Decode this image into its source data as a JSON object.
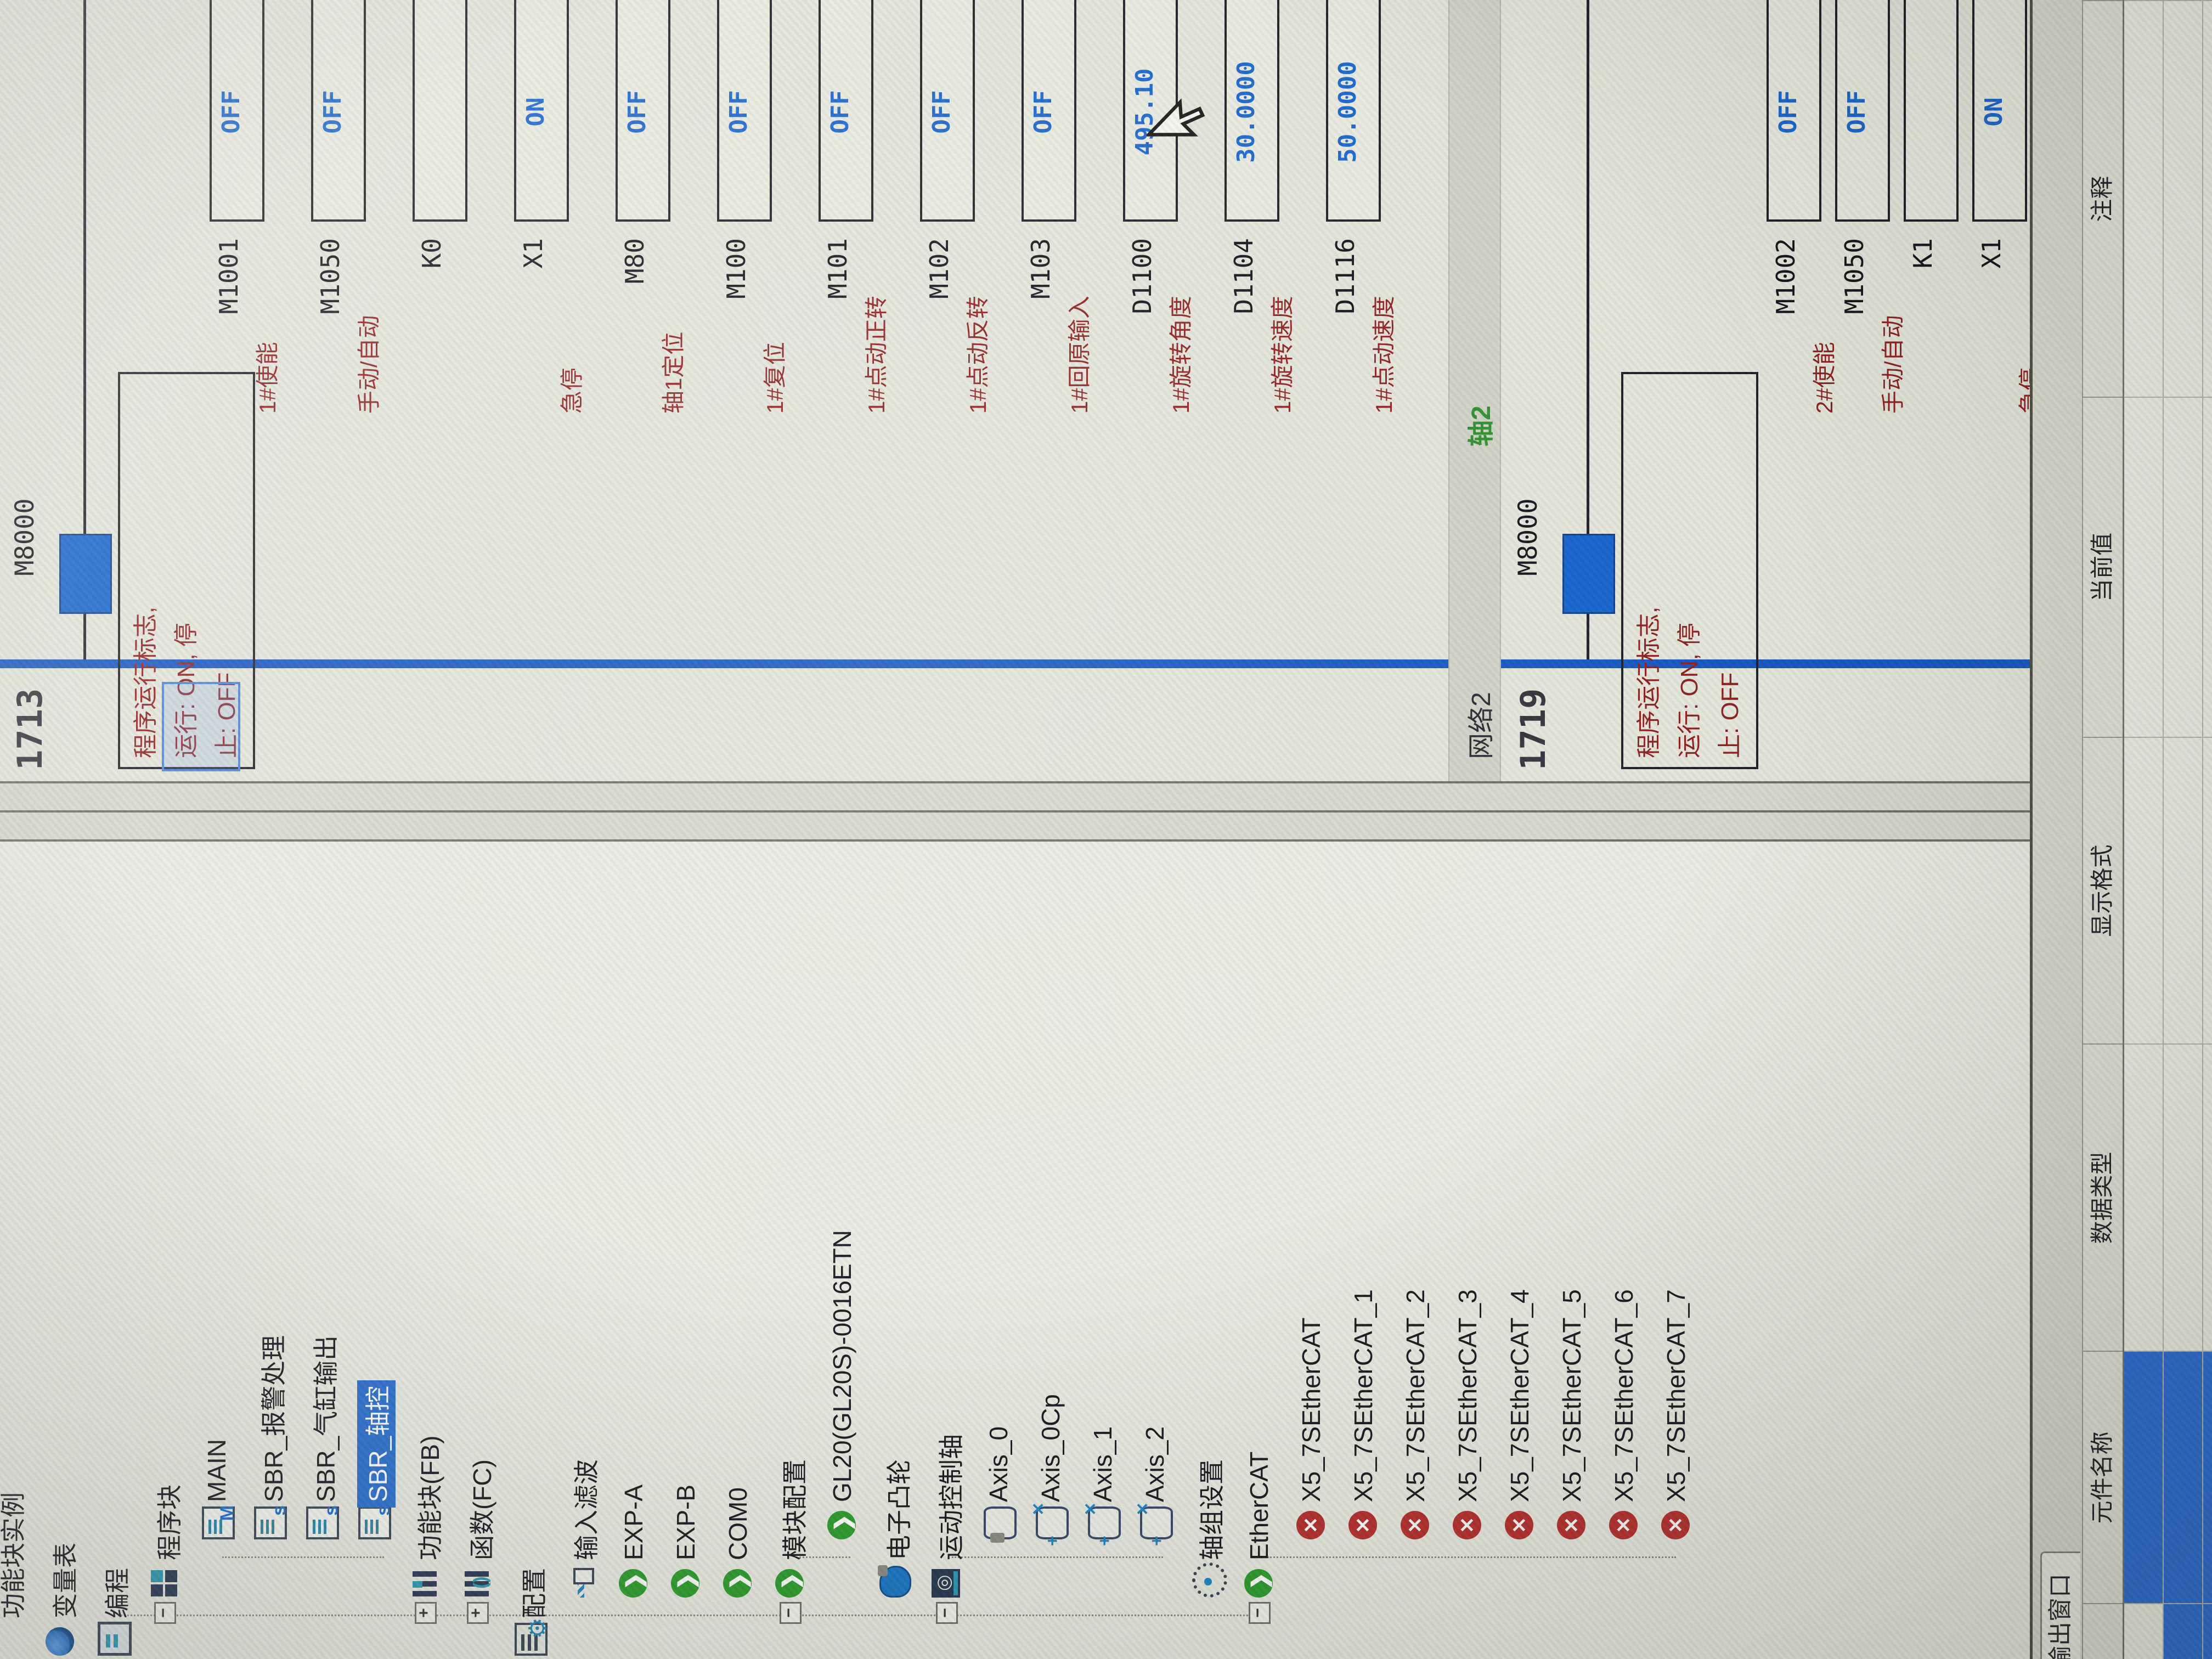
{
  "colors": {
    "selection_blue": "#2b6fd0",
    "rail_blue": "#1757c2",
    "contact_blue": "#1563cc",
    "value_blue": "#1b66cc",
    "comment_red": "#8e2020",
    "network_title_green": "#2f8f2f",
    "error_red": "#b83232",
    "ok_green": "#2f9e2f"
  },
  "tree": {
    "items": [
      {
        "label": "功能块实例",
        "icon": null,
        "level": 0,
        "expander": null,
        "selected": false
      },
      {
        "label": "变量表",
        "icon": "globe",
        "level": 0,
        "expander": null,
        "selected": false
      },
      {
        "label": "编程",
        "icon": "cube",
        "level": 0,
        "expander": "open",
        "selected": false
      },
      {
        "label": "程序块",
        "icon": "blocks",
        "level": 1,
        "expander": "open",
        "selected": false
      },
      {
        "label": "MAIN",
        "icon": "doc-m",
        "level": 2,
        "expander": null,
        "selected": false
      },
      {
        "label": "SBR_报警处理",
        "icon": "doc-s",
        "level": 2,
        "expander": null,
        "selected": false
      },
      {
        "label": "SBR_气缸输出",
        "icon": "doc-s",
        "level": 2,
        "expander": null,
        "selected": false
      },
      {
        "label": "SBR_轴控",
        "icon": "doc-s",
        "level": 2,
        "expander": null,
        "selected": true
      },
      {
        "label": "功能块(FB)",
        "icon": "fb",
        "level": 1,
        "expander": "closed",
        "selected": false
      },
      {
        "label": "函数(FC)",
        "icon": "fc",
        "level": 1,
        "expander": "closed",
        "selected": false
      },
      {
        "label": "配置",
        "icon": "config",
        "level": 0,
        "expander": "open",
        "selected": false
      },
      {
        "label": "输入滤波",
        "icon": "wave",
        "level": 1,
        "expander": null,
        "selected": false
      },
      {
        "label": "EXP-A",
        "icon": "green",
        "level": 1,
        "expander": null,
        "selected": false
      },
      {
        "label": "EXP-B",
        "icon": "green",
        "level": 1,
        "expander": null,
        "selected": false
      },
      {
        "label": "COM0",
        "icon": "green",
        "level": 1,
        "expander": null,
        "selected": false
      },
      {
        "label": "模块配置",
        "icon": "green",
        "level": 1,
        "expander": "open",
        "selected": false
      },
      {
        "label": "GL20(GL20S)-0016ETN",
        "icon": "green",
        "level": 2,
        "expander": null,
        "selected": false
      },
      {
        "label": "电子凸轮",
        "icon": "cam",
        "level": 1,
        "expander": null,
        "selected": false
      },
      {
        "label": "运动控制轴",
        "icon": "motion",
        "level": 1,
        "expander": "open",
        "selected": false
      },
      {
        "label": "Axis_0",
        "icon": "axis-motor",
        "level": 2,
        "expander": null,
        "selected": false
      },
      {
        "label": "Axis_0Cp",
        "icon": "axis-x",
        "level": 2,
        "expander": null,
        "selected": false
      },
      {
        "label": "Axis_1",
        "icon": "axis-x",
        "level": 2,
        "expander": null,
        "selected": false
      },
      {
        "label": "Axis_2",
        "icon": "axis-x",
        "level": 2,
        "expander": null,
        "selected": false
      },
      {
        "label": "轴组设置",
        "icon": "gear",
        "level": 1,
        "expander": null,
        "selected": false
      },
      {
        "label": "EtherCAT",
        "icon": "green",
        "level": 1,
        "expander": "open",
        "selected": false
      },
      {
        "label": "X5_7SEtherCAT",
        "icon": "red-x",
        "level": 2,
        "expander": null,
        "selected": false
      },
      {
        "label": "X5_7SEtherCAT_1",
        "icon": "red-x",
        "level": 2,
        "expander": null,
        "selected": false
      },
      {
        "label": "X5_7SEtherCAT_2",
        "icon": "red-x",
        "level": 2,
        "expander": null,
        "selected": false
      },
      {
        "label": "X5_7SEtherCAT_3",
        "icon": "red-x",
        "level": 2,
        "expander": null,
        "selected": false
      },
      {
        "label": "X5_7SEtherCAT_4",
        "icon": "red-x",
        "level": 2,
        "expander": null,
        "selected": false
      },
      {
        "label": "X5_7SEtherCAT_5",
        "icon": "red-x",
        "level": 2,
        "expander": null,
        "selected": false
      },
      {
        "label": "X5_7SEtherCAT_6",
        "icon": "red-x",
        "level": 2,
        "expander": null,
        "selected": false
      },
      {
        "label": "X5_7SEtherCAT_7",
        "icon": "red-x",
        "level": 2,
        "expander": null,
        "selected": false
      }
    ]
  },
  "ladder": {
    "networks": [
      {
        "step": "1713",
        "band": null,
        "contact": {
          "device": "M8000",
          "state": "on",
          "comment_lines": [
            "程序运行标志,",
            "运行: ON, 停",
            "止: OFF"
          ]
        },
        "rows": [
          {
            "device": "M1001",
            "comment": "1#使能",
            "value": "OFF"
          },
          {
            "device": "M1050",
            "comment": "手动/自动",
            "value": "OFF"
          },
          {
            "device": "K0",
            "comment": "",
            "value": ""
          },
          {
            "device": "X1",
            "comment": "急停",
            "value": "ON"
          },
          {
            "device": "M80",
            "comment": "轴1定位",
            "value": "OFF"
          },
          {
            "device": "M100",
            "comment": "1#复位",
            "value": "OFF"
          },
          {
            "device": "M101",
            "comment": "1#点动正转",
            "value": "OFF"
          },
          {
            "device": "M102",
            "comment": "1#点动反转",
            "value": "OFF"
          },
          {
            "device": "M103",
            "comment": "1#回原输入",
            "value": "OFF"
          },
          {
            "device": "D1100",
            "comment": "1#旋转角度",
            "value": "495.10"
          },
          {
            "device": "D1104",
            "comment": "1#旋转速度",
            "value": "30.0000"
          },
          {
            "device": "D1116",
            "comment": "1#点动速度",
            "value": "50.0000"
          }
        ]
      },
      {
        "step": "1719",
        "band": {
          "number": "网络2",
          "title": "轴2"
        },
        "contact": {
          "device": "M8000",
          "state": "on",
          "comment_lines": [
            "程序运行标志,",
            "运行: ON, 停",
            "止: OFF"
          ]
        },
        "rows": [
          {
            "device": "M1002",
            "comment": "2#使能",
            "value": "OFF"
          },
          {
            "device": "M1050",
            "comment": "手动/自动",
            "value": "OFF"
          },
          {
            "device": "K1",
            "comment": "",
            "value": ""
          },
          {
            "device": "X1",
            "comment": "急停",
            "value": "ON"
          }
        ]
      }
    ]
  },
  "bottom_panel": {
    "tab": "输出窗口",
    "columns": [
      "",
      "元件名称",
      "数据类型",
      "显示格式",
      "当前值",
      "注释"
    ],
    "rows": [
      {
        "selected_cells": [
          1
        ]
      },
      {
        "selected_cells": [
          0,
          1
        ]
      },
      {
        "selected_cells": [
          0,
          1
        ]
      }
    ]
  }
}
